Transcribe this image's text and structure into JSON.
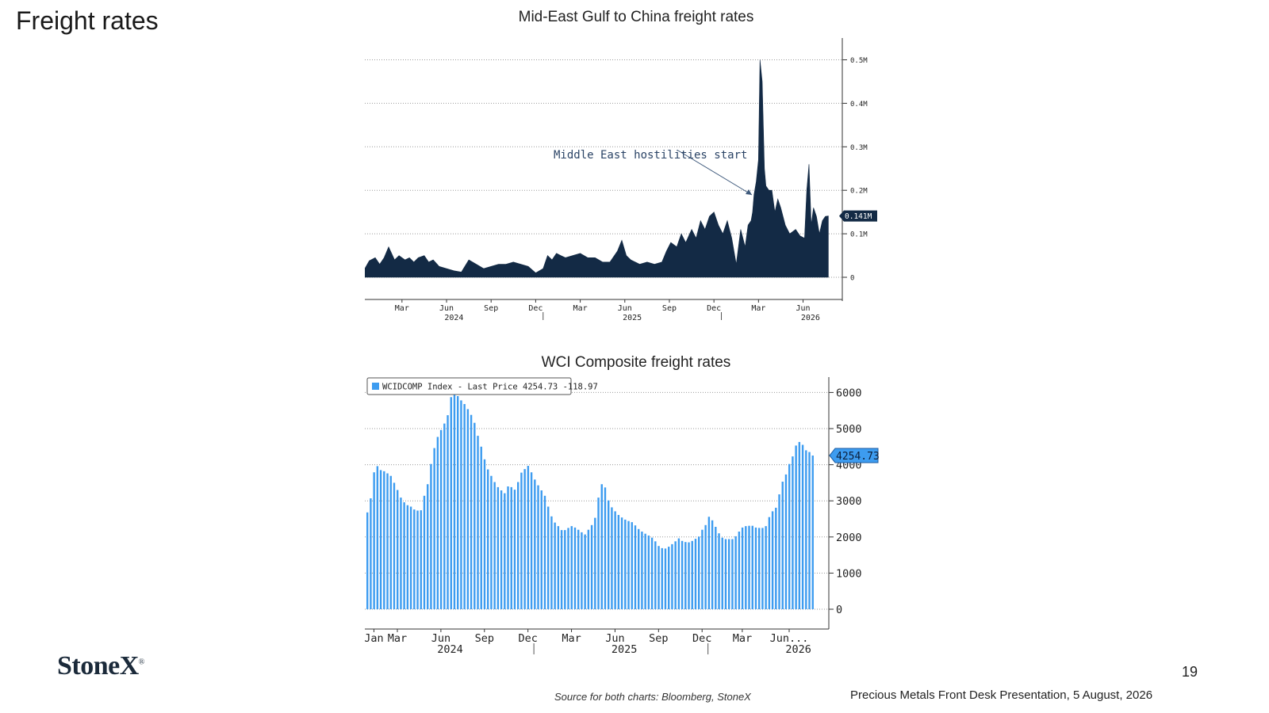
{
  "page": {
    "title": "Freight rates",
    "logo": "StoneX",
    "logo_mark": "®",
    "page_number": "19",
    "source_note": "Source for both charts: Bloomberg, StoneX",
    "footer_caption": "Precious Metals Front Desk Presentation, 5 August, 2026"
  },
  "chart_data": [
    {
      "type": "area",
      "title": "Mid-East Gulf to China freight rates",
      "annotation": "Middle East hostilities start",
      "last_value_label": "0.141M",
      "ylim": [
        0,
        0.52
      ],
      "y_ticks": [
        {
          "value": 0.5,
          "label": "0.5M"
        },
        {
          "value": 0.4,
          "label": "0.4M"
        },
        {
          "value": 0.3,
          "label": "0.3M"
        },
        {
          "value": 0.2,
          "label": "0.2M"
        },
        {
          "value": 0.1,
          "label": "0.1M"
        },
        {
          "value": 0,
          "label": "0"
        }
      ],
      "x_month_ticks": [
        {
          "month": 2.5,
          "label": "Mar"
        },
        {
          "month": 5.5,
          "label": "Jun"
        },
        {
          "month": 8.5,
          "label": "Sep"
        },
        {
          "month": 11.5,
          "label": "Dec"
        },
        {
          "month": 14.5,
          "label": "Mar"
        },
        {
          "month": 17.5,
          "label": "Jun"
        },
        {
          "month": 20.5,
          "label": "Sep"
        },
        {
          "month": 23.5,
          "label": "Dec"
        },
        {
          "month": 26.5,
          "label": "Mar"
        },
        {
          "month": 29.5,
          "label": "Jun"
        }
      ],
      "x_year_labels": [
        {
          "month": 6,
          "label": "2024"
        },
        {
          "month": 18,
          "label": "2025"
        },
        {
          "month": 30,
          "label": "2026"
        }
      ],
      "x_year_dividers": [
        12,
        24
      ],
      "xlim": [
        0,
        31.5
      ],
      "series": [
        {
          "months": [
            0,
            0.3,
            0.7,
            1.0,
            1.3,
            1.6,
            1.8,
            2.0,
            2.3,
            2.7,
            3.0,
            3.3,
            3.6,
            4.0,
            4.3,
            4.6,
            5.0,
            5.5,
            6.0,
            6.5,
            7.0,
            7.5,
            8.0,
            8.5,
            9.0,
            9.5,
            10.0,
            10.5,
            11.0,
            11.5,
            12.0,
            12.3,
            12.6,
            12.9,
            13.2,
            13.5,
            14.0,
            14.5,
            15.0,
            15.5,
            16.0,
            16.5,
            17.0,
            17.3,
            17.6,
            17.9,
            18.2,
            18.5,
            19.0,
            19.5,
            20.0,
            20.3,
            20.6,
            21.0,
            21.3,
            21.6,
            22.0,
            22.3,
            22.6,
            22.9,
            23.2,
            23.5,
            23.8,
            24.1,
            24.4,
            24.7,
            25.0,
            25.3,
            25.6,
            25.8,
            26.0,
            26.1,
            26.2,
            26.35,
            26.5,
            26.6,
            26.75,
            26.9,
            27.0,
            27.2,
            27.4,
            27.6,
            27.8,
            28.0,
            28.3,
            28.6,
            29.0,
            29.3,
            29.6,
            29.75,
            29.9,
            30.05,
            30.2,
            30.4,
            30.6,
            30.8,
            31.0,
            31.2
          ],
          "values": [
            0.02,
            0.038,
            0.045,
            0.03,
            0.045,
            0.07,
            0.055,
            0.04,
            0.05,
            0.04,
            0.045,
            0.035,
            0.045,
            0.05,
            0.035,
            0.04,
            0.025,
            0.02,
            0.015,
            0.012,
            0.04,
            0.03,
            0.02,
            0.025,
            0.03,
            0.03,
            0.035,
            0.03,
            0.025,
            0.01,
            0.02,
            0.05,
            0.04,
            0.055,
            0.05,
            0.045,
            0.05,
            0.055,
            0.045,
            0.045,
            0.035,
            0.035,
            0.06,
            0.085,
            0.05,
            0.04,
            0.035,
            0.03,
            0.035,
            0.03,
            0.035,
            0.06,
            0.08,
            0.07,
            0.1,
            0.08,
            0.11,
            0.09,
            0.13,
            0.11,
            0.14,
            0.15,
            0.12,
            0.1,
            0.13,
            0.09,
            0.03,
            0.11,
            0.07,
            0.12,
            0.13,
            0.15,
            0.19,
            0.22,
            0.27,
            0.5,
            0.45,
            0.25,
            0.21,
            0.2,
            0.2,
            0.15,
            0.18,
            0.16,
            0.12,
            0.1,
            0.11,
            0.095,
            0.09,
            0.2,
            0.26,
            0.12,
            0.16,
            0.14,
            0.1,
            0.13,
            0.14,
            0.141
          ]
        }
      ]
    },
    {
      "type": "bar",
      "title": "WCI Composite freight rates",
      "legend": {
        "name": "WCIDCOMP Index",
        "label": "Last Price",
        "last": "4254.73",
        "change": "-118.97"
      },
      "last_value_label": "4254.73",
      "ylim": [
        -600,
        6600
      ],
      "y_ticks": [
        {
          "value": 6000,
          "label": "6000"
        },
        {
          "value": 5000,
          "label": "5000"
        },
        {
          "value": 4000,
          "label": "4000"
        },
        {
          "value": 3000,
          "label": "3000"
        },
        {
          "value": 2000,
          "label": "2000"
        },
        {
          "value": 1000,
          "label": "1000"
        },
        {
          "value": 0,
          "label": "0"
        }
      ],
      "x_month_ticks": [
        {
          "week": 2,
          "label": "Jan"
        },
        {
          "week": 9,
          "label": "Mar"
        },
        {
          "week": 22,
          "label": "Jun"
        },
        {
          "week": 35,
          "label": "Sep"
        },
        {
          "week": 48,
          "label": "Dec"
        },
        {
          "week": 61,
          "label": "Mar"
        },
        {
          "week": 74,
          "label": "Jun"
        },
        {
          "week": 87,
          "label": "Sep"
        },
        {
          "week": 100,
          "label": "Dec"
        },
        {
          "week": 112,
          "label": "Mar"
        },
        {
          "week": 126,
          "label": "Jun..."
        }
      ],
      "x_year_labels": [
        {
          "week": 25,
          "label": "2024"
        },
        {
          "week": 77,
          "label": "2025"
        },
        {
          "week": 129,
          "label": "2026"
        }
      ],
      "x_year_dividers": [
        50,
        102
      ],
      "series": [
        {
          "name": "WCIDCOMP Index",
          "values": [
            2680,
            3070,
            3790,
            3960,
            3850,
            3820,
            3760,
            3690,
            3500,
            3300,
            3090,
            2960,
            2880,
            2840,
            2760,
            2730,
            2740,
            3140,
            3460,
            4020,
            4460,
            4770,
            4960,
            5140,
            5370,
            5870,
            5990,
            5900,
            5780,
            5680,
            5540,
            5380,
            5160,
            4800,
            4500,
            4150,
            3870,
            3690,
            3520,
            3380,
            3290,
            3210,
            3400,
            3380,
            3310,
            3520,
            3780,
            3880,
            3970,
            3790,
            3590,
            3430,
            3290,
            3140,
            2840,
            2570,
            2400,
            2300,
            2190,
            2190,
            2250,
            2300,
            2260,
            2200,
            2130,
            2070,
            2200,
            2330,
            2530,
            3090,
            3460,
            3370,
            3010,
            2820,
            2710,
            2610,
            2540,
            2480,
            2440,
            2410,
            2320,
            2220,
            2150,
            2090,
            2040,
            1980,
            1880,
            1750,
            1690,
            1680,
            1730,
            1800,
            1880,
            1960,
            1890,
            1860,
            1850,
            1890,
            1950,
            2010,
            2200,
            2330,
            2560,
            2460,
            2280,
            2100,
            1980,
            1940,
            1940,
            1940,
            2020,
            2150,
            2260,
            2300,
            2310,
            2310,
            2260,
            2250,
            2250,
            2300,
            2550,
            2710,
            2810,
            3180,
            3530,
            3730,
            4020,
            4230,
            4530,
            4630,
            4550,
            4400,
            4350,
            4254.73
          ]
        }
      ]
    }
  ]
}
